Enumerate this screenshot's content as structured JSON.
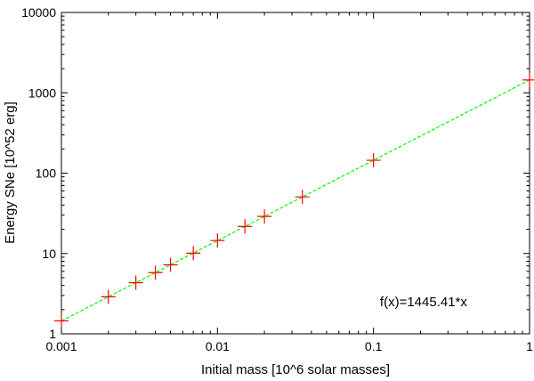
{
  "chart_data": {
    "type": "scatter",
    "xlabel": "Initial mass [10^6 solar masses]",
    "ylabel": "Energy SNe [10^52 erg]",
    "x_scale": "log",
    "y_scale": "log",
    "xlim": [
      0.001,
      1
    ],
    "ylim": [
      1,
      10000
    ],
    "x_ticks": [
      {
        "value": 0.001,
        "label": "0.001"
      },
      {
        "value": 0.01,
        "label": "0.01"
      },
      {
        "value": 0.1,
        "label": "0.1"
      },
      {
        "value": 1,
        "label": "1"
      }
    ],
    "y_ticks": [
      {
        "value": 1,
        "label": "1"
      },
      {
        "value": 10,
        "label": "10"
      },
      {
        "value": 100,
        "label": "100"
      },
      {
        "value": 1000,
        "label": "1000"
      },
      {
        "value": 10000,
        "label": "10000"
      }
    ],
    "grid": false,
    "series": [
      {
        "marker": "plus",
        "color": "#ff0000",
        "x": [
          0.001,
          0.002,
          0.003,
          0.004,
          0.005,
          0.007,
          0.01,
          0.015,
          0.02,
          0.035,
          0.1,
          1
        ],
        "y": [
          1.45,
          2.89,
          4.34,
          5.78,
          7.23,
          10.1,
          14.5,
          21.7,
          28.9,
          50.6,
          144.5,
          1445
        ]
      }
    ],
    "fit": {
      "color": "#00ff00",
      "style": "dashed",
      "slope": 1445.41,
      "x_range": [
        0.001,
        1
      ]
    },
    "annotations": [
      {
        "text": "f(x)=1445.41*x",
        "x": 0.11,
        "y": 2.2
      }
    ]
  }
}
